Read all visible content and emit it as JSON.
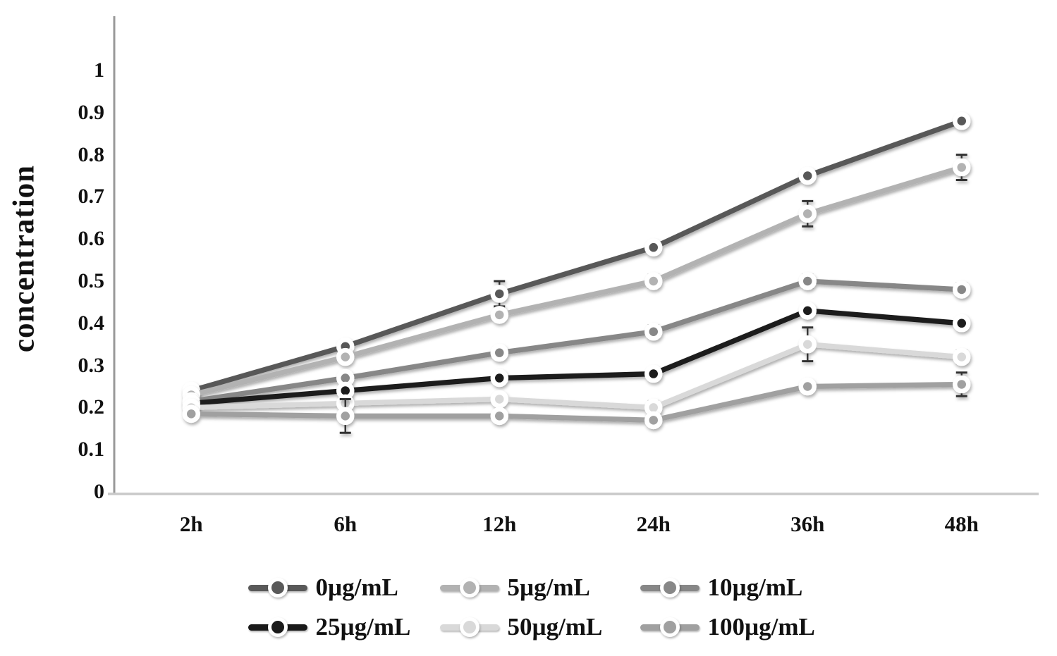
{
  "chart_data": {
    "type": "line",
    "title": "",
    "xlabel": "",
    "ylabel": "concentration",
    "categories": [
      "2h",
      "6h",
      "12h",
      "24h",
      "36h",
      "48h"
    ],
    "ylim": [
      0,
      1
    ],
    "ytick_step": 0.1,
    "ytick_labels": [
      "0",
      "0.1",
      "0.2",
      "0.3",
      "0.4",
      "0.5",
      "0.6",
      "0.7",
      "0.8",
      "0.9",
      "1"
    ],
    "grid": false,
    "legend_position": "bottom",
    "axis_colors": {
      "y": "#999999",
      "x": "#c9c9c9"
    },
    "error_bar_color": "#333333",
    "series": [
      {
        "name": "0µg/mL",
        "color": "#595959",
        "values": [
          0.24,
          0.345,
          0.47,
          0.58,
          0.75,
          0.88
        ],
        "errors": [
          null,
          null,
          0.03,
          null,
          null,
          null
        ]
      },
      {
        "name": "5µg/mL",
        "color": "#b2b2b2",
        "values": [
          0.23,
          0.32,
          0.42,
          0.5,
          0.66,
          0.77
        ],
        "errors": [
          null,
          null,
          null,
          0.015,
          0.03,
          0.03
        ]
      },
      {
        "name": "10µg/mL",
        "color": "#878787",
        "values": [
          0.215,
          0.27,
          0.33,
          0.38,
          0.5,
          0.48
        ],
        "errors": [
          null,
          null,
          null,
          0.015,
          0.015,
          0.015
        ]
      },
      {
        "name": "25µg/mL",
        "color": "#1a1a1a",
        "values": [
          0.21,
          0.24,
          0.27,
          0.28,
          0.43,
          0.4
        ],
        "errors": [
          null,
          null,
          null,
          null,
          null,
          null
        ]
      },
      {
        "name": "50µg/mL",
        "color": "#d9d9d9",
        "values": [
          0.2,
          0.21,
          0.22,
          0.2,
          0.35,
          0.32
        ],
        "errors": [
          null,
          null,
          null,
          0.015,
          0.04,
          0.015
        ]
      },
      {
        "name": "100µg/mL",
        "color": "#a0a0a0",
        "values": [
          0.185,
          0.18,
          0.18,
          0.17,
          0.25,
          0.255
        ],
        "errors": [
          null,
          0.04,
          null,
          null,
          null,
          0.028
        ]
      }
    ]
  }
}
